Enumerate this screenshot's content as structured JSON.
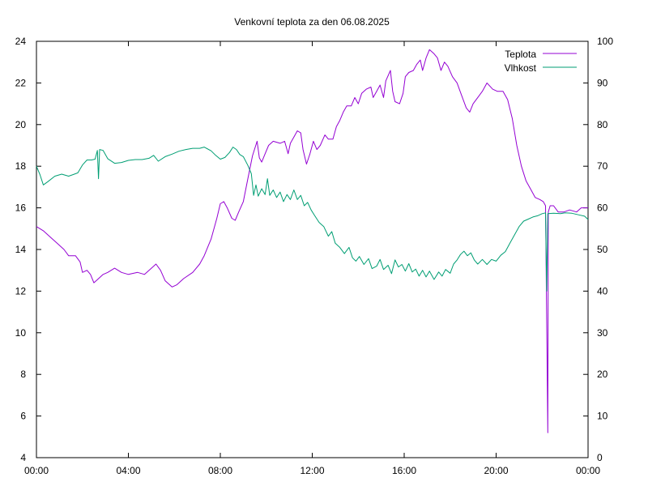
{
  "chart_data": {
    "type": "line",
    "title": "Venkovní teplota za den 06.08.2025",
    "x": {
      "ticks": [
        "00:00",
        "04:00",
        "08:00",
        "12:00",
        "16:00",
        "20:00",
        "00:00"
      ],
      "range_hours": [
        0,
        24
      ]
    },
    "y_left": {
      "range": [
        4,
        24
      ],
      "ticks": [
        4,
        6,
        8,
        10,
        12,
        14,
        16,
        18,
        20,
        22,
        24
      ]
    },
    "y_right": {
      "range": [
        0,
        100
      ],
      "ticks": [
        0,
        10,
        20,
        30,
        40,
        50,
        60,
        70,
        80,
        90,
        100
      ]
    },
    "grid": false,
    "legend_position": "top-right",
    "series": [
      {
        "name": "Teplota",
        "axis": "left",
        "color": "#9400d3",
        "points": [
          [
            0.0,
            15.1
          ],
          [
            0.3,
            14.9
          ],
          [
            0.6,
            14.6
          ],
          [
            0.9,
            14.3
          ],
          [
            1.2,
            14.0
          ],
          [
            1.4,
            13.7
          ],
          [
            1.7,
            13.7
          ],
          [
            1.9,
            13.4
          ],
          [
            2.0,
            12.9
          ],
          [
            2.2,
            13.0
          ],
          [
            2.35,
            12.8
          ],
          [
            2.5,
            12.4
          ],
          [
            2.7,
            12.6
          ],
          [
            2.9,
            12.8
          ],
          [
            3.1,
            12.9
          ],
          [
            3.4,
            13.1
          ],
          [
            3.7,
            12.9
          ],
          [
            4.0,
            12.8
          ],
          [
            4.4,
            12.9
          ],
          [
            4.7,
            12.8
          ],
          [
            4.9,
            13.0
          ],
          [
            5.2,
            13.3
          ],
          [
            5.4,
            13.0
          ],
          [
            5.6,
            12.5
          ],
          [
            5.9,
            12.2
          ],
          [
            6.1,
            12.3
          ],
          [
            6.4,
            12.6
          ],
          [
            6.8,
            12.9
          ],
          [
            7.1,
            13.3
          ],
          [
            7.3,
            13.7
          ],
          [
            7.6,
            14.5
          ],
          [
            7.85,
            15.5
          ],
          [
            8.0,
            16.2
          ],
          [
            8.15,
            16.3
          ],
          [
            8.3,
            16.0
          ],
          [
            8.5,
            15.5
          ],
          [
            8.65,
            15.4
          ],
          [
            8.8,
            15.8
          ],
          [
            9.0,
            16.3
          ],
          [
            9.2,
            17.4
          ],
          [
            9.4,
            18.5
          ],
          [
            9.6,
            19.2
          ],
          [
            9.7,
            18.4
          ],
          [
            9.8,
            18.2
          ],
          [
            9.95,
            18.6
          ],
          [
            10.1,
            19.0
          ],
          [
            10.3,
            19.2
          ],
          [
            10.6,
            19.1
          ],
          [
            10.8,
            19.2
          ],
          [
            10.95,
            18.6
          ],
          [
            11.05,
            19.1
          ],
          [
            11.2,
            19.4
          ],
          [
            11.35,
            19.7
          ],
          [
            11.5,
            19.6
          ],
          [
            11.6,
            18.8
          ],
          [
            11.75,
            18.1
          ],
          [
            11.9,
            18.6
          ],
          [
            12.05,
            19.2
          ],
          [
            12.2,
            18.8
          ],
          [
            12.35,
            19.0
          ],
          [
            12.55,
            19.5
          ],
          [
            12.7,
            19.3
          ],
          [
            12.9,
            19.3
          ],
          [
            13.05,
            19.9
          ],
          [
            13.2,
            20.2
          ],
          [
            13.35,
            20.6
          ],
          [
            13.5,
            20.9
          ],
          [
            13.7,
            20.9
          ],
          [
            13.85,
            21.3
          ],
          [
            14.0,
            21.0
          ],
          [
            14.15,
            21.5
          ],
          [
            14.35,
            21.7
          ],
          [
            14.55,
            21.8
          ],
          [
            14.65,
            21.3
          ],
          [
            14.8,
            21.6
          ],
          [
            14.95,
            21.9
          ],
          [
            15.1,
            21.3
          ],
          [
            15.2,
            22.1
          ],
          [
            15.4,
            22.6
          ],
          [
            15.5,
            21.6
          ],
          [
            15.6,
            21.1
          ],
          [
            15.8,
            21.0
          ],
          [
            15.95,
            21.5
          ],
          [
            16.05,
            22.3
          ],
          [
            16.2,
            22.5
          ],
          [
            16.4,
            22.6
          ],
          [
            16.55,
            22.9
          ],
          [
            16.7,
            23.1
          ],
          [
            16.8,
            22.6
          ],
          [
            16.95,
            23.2
          ],
          [
            17.1,
            23.6
          ],
          [
            17.3,
            23.4
          ],
          [
            17.45,
            23.2
          ],
          [
            17.6,
            22.6
          ],
          [
            17.75,
            23.0
          ],
          [
            17.9,
            22.8
          ],
          [
            18.1,
            22.3
          ],
          [
            18.3,
            22.0
          ],
          [
            18.5,
            21.4
          ],
          [
            18.7,
            20.8
          ],
          [
            18.85,
            20.6
          ],
          [
            19.0,
            21.0
          ],
          [
            19.2,
            21.3
          ],
          [
            19.4,
            21.6
          ],
          [
            19.6,
            22.0
          ],
          [
            19.85,
            21.7
          ],
          [
            20.05,
            21.6
          ],
          [
            20.3,
            21.6
          ],
          [
            20.5,
            21.2
          ],
          [
            20.7,
            20.3
          ],
          [
            20.9,
            19.0
          ],
          [
            21.1,
            18.0
          ],
          [
            21.3,
            17.3
          ],
          [
            21.5,
            16.9
          ],
          [
            21.7,
            16.5
          ],
          [
            21.9,
            16.4
          ],
          [
            22.05,
            16.3
          ],
          [
            22.15,
            16.1
          ],
          [
            22.2,
            10.6
          ],
          [
            22.25,
            5.2
          ],
          [
            22.27,
            15.8
          ],
          [
            22.35,
            16.1
          ],
          [
            22.5,
            16.1
          ],
          [
            22.7,
            15.8
          ],
          [
            22.95,
            15.8
          ],
          [
            23.2,
            15.9
          ],
          [
            23.5,
            15.8
          ],
          [
            23.7,
            16.0
          ],
          [
            24.0,
            16.0
          ]
        ]
      },
      {
        "name": "Vlhkost",
        "axis": "right",
        "color": "#009e73",
        "points": [
          [
            0.0,
            70.0
          ],
          [
            0.15,
            68.0
          ],
          [
            0.3,
            65.5
          ],
          [
            0.5,
            66.3
          ],
          [
            0.8,
            67.6
          ],
          [
            1.1,
            68.1
          ],
          [
            1.4,
            67.6
          ],
          [
            1.6,
            68.0
          ],
          [
            1.8,
            68.4
          ],
          [
            2.0,
            70.3
          ],
          [
            2.2,
            71.5
          ],
          [
            2.4,
            71.5
          ],
          [
            2.55,
            71.7
          ],
          [
            2.65,
            73.8
          ],
          [
            2.7,
            67.0
          ],
          [
            2.75,
            74.0
          ],
          [
            2.9,
            73.8
          ],
          [
            3.1,
            71.8
          ],
          [
            3.4,
            70.7
          ],
          [
            3.7,
            70.9
          ],
          [
            4.0,
            71.4
          ],
          [
            4.3,
            71.6
          ],
          [
            4.6,
            71.6
          ],
          [
            4.9,
            71.9
          ],
          [
            5.1,
            72.6
          ],
          [
            5.3,
            71.2
          ],
          [
            5.6,
            72.3
          ],
          [
            5.9,
            72.9
          ],
          [
            6.2,
            73.6
          ],
          [
            6.5,
            74.0
          ],
          [
            6.8,
            74.3
          ],
          [
            7.1,
            74.3
          ],
          [
            7.3,
            74.6
          ],
          [
            7.6,
            73.7
          ],
          [
            7.8,
            72.6
          ],
          [
            8.0,
            71.7
          ],
          [
            8.2,
            72.1
          ],
          [
            8.4,
            73.3
          ],
          [
            8.55,
            74.6
          ],
          [
            8.7,
            74.0
          ],
          [
            8.85,
            72.8
          ],
          [
            9.0,
            72.3
          ],
          [
            9.2,
            70.2
          ],
          [
            9.35,
            68.2
          ],
          [
            9.45,
            63.0
          ],
          [
            9.55,
            65.5
          ],
          [
            9.65,
            62.8
          ],
          [
            9.8,
            64.6
          ],
          [
            9.95,
            63.2
          ],
          [
            10.05,
            67.0
          ],
          [
            10.15,
            63.0
          ],
          [
            10.3,
            64.3
          ],
          [
            10.45,
            62.5
          ],
          [
            10.6,
            63.8
          ],
          [
            10.75,
            61.5
          ],
          [
            10.9,
            63.2
          ],
          [
            11.05,
            62.0
          ],
          [
            11.2,
            64.3
          ],
          [
            11.35,
            62.0
          ],
          [
            11.5,
            63.0
          ],
          [
            11.65,
            60.5
          ],
          [
            11.8,
            61.3
          ],
          [
            11.95,
            59.5
          ],
          [
            12.1,
            58.2
          ],
          [
            12.3,
            56.5
          ],
          [
            12.5,
            55.5
          ],
          [
            12.7,
            53.2
          ],
          [
            12.85,
            54.3
          ],
          [
            13.0,
            51.5
          ],
          [
            13.2,
            50.5
          ],
          [
            13.4,
            49.0
          ],
          [
            13.6,
            50.5
          ],
          [
            13.75,
            48.0
          ],
          [
            13.9,
            47.2
          ],
          [
            14.05,
            48.3
          ],
          [
            14.25,
            46.4
          ],
          [
            14.45,
            47.8
          ],
          [
            14.6,
            45.4
          ],
          [
            14.8,
            46.0
          ],
          [
            14.95,
            47.6
          ],
          [
            15.1,
            45.2
          ],
          [
            15.3,
            46.2
          ],
          [
            15.45,
            44.2
          ],
          [
            15.6,
            47.5
          ],
          [
            15.75,
            45.8
          ],
          [
            15.9,
            46.4
          ],
          [
            16.05,
            44.8
          ],
          [
            16.2,
            46.6
          ],
          [
            16.35,
            44.6
          ],
          [
            16.5,
            45.3
          ],
          [
            16.65,
            43.6
          ],
          [
            16.8,
            45.0
          ],
          [
            16.95,
            43.4
          ],
          [
            17.1,
            44.8
          ],
          [
            17.3,
            42.8
          ],
          [
            17.5,
            44.6
          ],
          [
            17.65,
            43.6
          ],
          [
            17.8,
            45.2
          ],
          [
            18.0,
            44.3
          ],
          [
            18.15,
            46.5
          ],
          [
            18.3,
            47.5
          ],
          [
            18.45,
            48.8
          ],
          [
            18.6,
            49.6
          ],
          [
            18.75,
            48.5
          ],
          [
            18.9,
            49.2
          ],
          [
            19.05,
            47.5
          ],
          [
            19.2,
            46.5
          ],
          [
            19.4,
            47.6
          ],
          [
            19.6,
            46.4
          ],
          [
            19.8,
            47.6
          ],
          [
            20.0,
            47.2
          ],
          [
            20.2,
            48.6
          ],
          [
            20.4,
            49.5
          ],
          [
            20.6,
            51.5
          ],
          [
            20.8,
            53.5
          ],
          [
            21.0,
            55.5
          ],
          [
            21.2,
            56.8
          ],
          [
            21.4,
            57.3
          ],
          [
            21.6,
            57.8
          ],
          [
            21.8,
            58.1
          ],
          [
            22.0,
            58.6
          ],
          [
            22.15,
            58.8
          ],
          [
            22.2,
            40.0
          ],
          [
            22.25,
            58.6
          ],
          [
            22.5,
            58.7
          ],
          [
            22.8,
            58.6
          ],
          [
            23.0,
            58.8
          ],
          [
            23.3,
            58.7
          ],
          [
            23.6,
            58.3
          ],
          [
            23.85,
            58.0
          ],
          [
            24.0,
            57.2
          ]
        ]
      }
    ]
  }
}
